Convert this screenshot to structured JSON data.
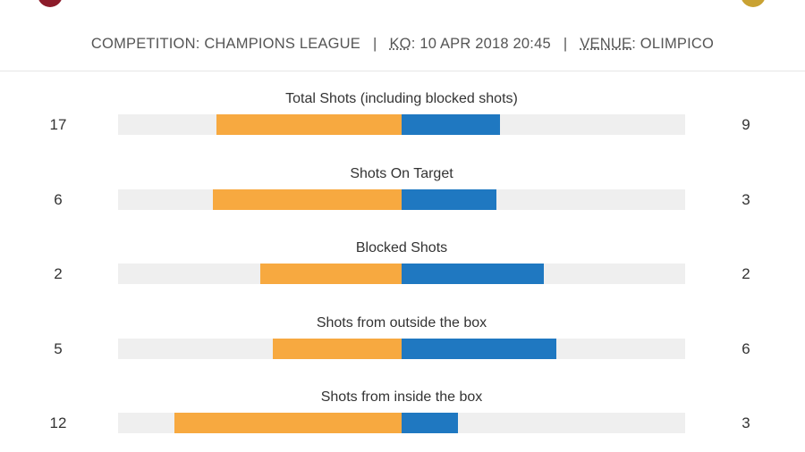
{
  "header": {
    "items": [
      {
        "label": "COMPETITION",
        "value": "CHAMPIONS LEAGUE"
      },
      {
        "label": "KO",
        "value": "10 APR 2018 20:45"
      },
      {
        "label": "VENUE",
        "value": "OLIMPICO"
      }
    ],
    "separator": ":",
    "divider": "|"
  },
  "stats": [
    {
      "label": "Total Shots (including blocked shots)",
      "home": 17,
      "away": 9
    },
    {
      "label": "Shots On Target",
      "home": 6,
      "away": 3
    },
    {
      "label": "Blocked Shots",
      "home": 2,
      "away": 2
    },
    {
      "label": "Shots from outside the box",
      "home": 5,
      "away": 6
    },
    {
      "label": "Shots from inside the box",
      "home": 12,
      "away": 3
    }
  ],
  "colors": {
    "home": "#f7a940",
    "away": "#1f78c1",
    "track": "#efefef"
  }
}
